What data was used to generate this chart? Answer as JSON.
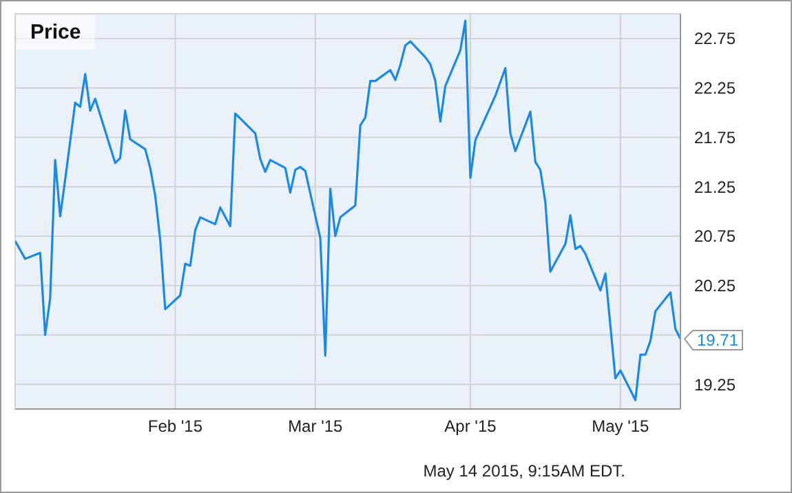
{
  "chart_data": {
    "type": "line",
    "title": "Price",
    "annotations": [
      "May 14 2015, 9:15AM EDT."
    ],
    "x": [
      "2014-12-31",
      "2015-01-02",
      "2015-01-05",
      "2015-01-06",
      "2015-01-07",
      "2015-01-08",
      "2015-01-09",
      "2015-01-10",
      "2015-01-12",
      "2015-01-13",
      "2015-01-14",
      "2015-01-15",
      "2015-01-16",
      "2015-01-20",
      "2015-01-21",
      "2015-01-22",
      "2015-01-23",
      "2015-01-26",
      "2015-01-27",
      "2015-01-28",
      "2015-01-29",
      "2015-01-30",
      "2015-02-02",
      "2015-02-03",
      "2015-02-04",
      "2015-02-05",
      "2015-02-06",
      "2015-02-09",
      "2015-02-10",
      "2015-02-12",
      "2015-02-13",
      "2015-02-17",
      "2015-02-18",
      "2015-02-19",
      "2015-02-20",
      "2015-02-23",
      "2015-02-24",
      "2015-02-25",
      "2015-02-26",
      "2015-02-27",
      "2015-03-02",
      "2015-03-03",
      "2015-03-04",
      "2015-03-05",
      "2015-03-06",
      "2015-03-09",
      "2015-03-10",
      "2015-03-11",
      "2015-03-12",
      "2015-03-13",
      "2015-03-16",
      "2015-03-17",
      "2015-03-18",
      "2015-03-19",
      "2015-03-20",
      "2015-03-23",
      "2015-03-24",
      "2015-03-25",
      "2015-03-26",
      "2015-03-27",
      "2015-03-30",
      "2015-03-31",
      "2015-04-01",
      "2015-04-02",
      "2015-04-06",
      "2015-04-08",
      "2015-04-09",
      "2015-04-10",
      "2015-04-13",
      "2015-04-14",
      "2015-04-15",
      "2015-04-16",
      "2015-04-17",
      "2015-04-20",
      "2015-04-21",
      "2015-04-22",
      "2015-04-23",
      "2015-04-24",
      "2015-04-27",
      "2015-04-28",
      "2015-04-30",
      "2015-05-01",
      "2015-05-04",
      "2015-05-05",
      "2015-05-06",
      "2015-05-07",
      "2015-05-08",
      "2015-05-11",
      "2015-05-12",
      "2015-05-13"
    ],
    "series": [
      {
        "color": "#1a8ae6",
        "values": [
          20.7,
          20.52,
          20.58,
          19.75,
          20.12,
          21.52,
          20.95,
          21.32,
          22.1,
          22.06,
          22.39,
          22.02,
          22.14,
          21.49,
          21.54,
          22.02,
          21.73,
          21.63,
          21.44,
          21.16,
          20.71,
          20.01,
          20.15,
          20.47,
          20.45,
          20.81,
          20.94,
          20.87,
          21.04,
          20.85,
          21.99,
          21.79,
          21.53,
          21.4,
          21.52,
          21.44,
          21.19,
          21.42,
          21.45,
          21.41,
          20.73,
          19.54,
          21.23,
          20.75,
          20.94,
          21.06,
          21.87,
          21.95,
          22.32,
          22.32,
          22.43,
          22.33,
          22.48,
          22.68,
          22.72,
          22.56,
          22.49,
          22.32,
          21.91,
          22.27,
          22.63,
          22.93,
          21.34,
          21.72,
          22.17,
          22.45,
          21.79,
          21.61,
          22.01,
          21.5,
          21.42,
          21.09,
          20.39,
          20.67,
          20.96,
          20.62,
          20.65,
          20.57,
          20.2,
          20.37,
          19.31,
          19.39,
          19.09,
          19.55,
          19.55,
          19.69,
          19.99,
          20.18,
          19.81,
          19.71
        ],
        "value_labels": [
          null,
          null,
          null,
          null,
          null,
          null,
          null,
          null,
          null,
          null,
          null,
          null,
          null,
          null,
          null,
          null,
          null,
          null,
          null,
          null,
          null,
          null,
          null,
          null,
          null,
          null,
          null,
          null,
          null,
          null,
          null,
          null,
          null,
          null,
          null,
          null,
          null,
          null,
          null,
          null,
          null,
          null,
          null,
          null,
          null,
          null,
          null,
          null,
          null,
          null,
          null,
          null,
          null,
          null,
          null,
          null,
          null,
          null,
          null,
          null,
          null,
          null,
          null,
          null,
          null,
          null,
          null,
          null,
          null,
          null,
          null,
          null,
          null,
          null,
          null,
          null,
          null,
          null,
          null,
          null,
          null,
          null,
          null,
          null,
          null,
          null,
          null,
          null,
          null,
          "19.71"
        ]
      }
    ],
    "xlim": [
      "2014-12-31",
      "2015-05-13"
    ],
    "xticks": [
      {
        "value": "2015-02-01",
        "label": "Feb '15"
      },
      {
        "value": "2015-03-01",
        "label": "Mar '15"
      },
      {
        "value": "2015-04-01",
        "label": "Apr '15"
      },
      {
        "value": "2015-05-01",
        "label": "May '15"
      }
    ],
    "ylim": [
      19,
      23
    ],
    "yticks": [
      19.25,
      {
        "value": 19.75,
        "label": null
      },
      20.25,
      20.75,
      21.25,
      21.75,
      22.25,
      22.75
    ],
    "grid": true,
    "legend": false,
    "marker": "none",
    "line_style": "solid"
  }
}
